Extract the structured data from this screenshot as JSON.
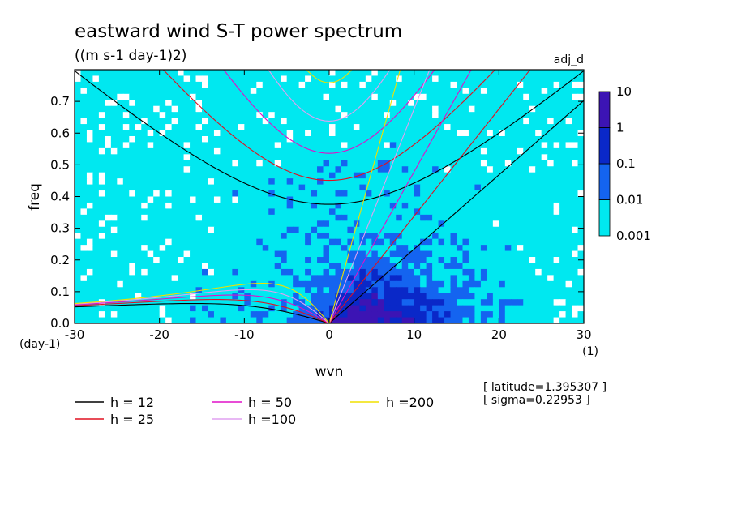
{
  "chart_data": {
    "type": "heatmap",
    "title": "eastward wind S-T power spectrum",
    "subtitle": "((m s-1 day-1)2)",
    "tag": "adj_d",
    "xlabel": "wvn",
    "xunit": "(1)",
    "ylabel": "freq",
    "yunit": "(day-1)",
    "xlim": [
      -30,
      30
    ],
    "ylim": [
      0,
      0.8
    ],
    "x_ticks": [
      -30,
      -20,
      -10,
      0,
      10,
      20,
      30
    ],
    "x_tick_labels": [
      "-30",
      "-20",
      "-10",
      "0",
      "10",
      "20",
      "30"
    ],
    "y_ticks": [
      0,
      0.1,
      0.2,
      0.3,
      0.4,
      0.5,
      0.6,
      0.7
    ],
    "y_tick_labels": [
      "0.0",
      "0.1",
      "0.2",
      "0.3",
      "0.4",
      "0.5",
      "0.6",
      "0.7"
    ],
    "grid": false,
    "colorbar": {
      "levels": [
        0.001,
        0.01,
        0.1,
        1,
        10
      ],
      "labels": [
        "0.001",
        "0.01",
        "0.1",
        "1",
        "10"
      ],
      "colors": [
        "#00e8f0",
        "#1464f0",
        "#0a28c8",
        "#3c14b4"
      ],
      "below_color": "#ffffff"
    },
    "contour_colors": {
      "cyan": "#00e8f0",
      "light_blue": "#1464f0",
      "dark_blue": "#0a28c8",
      "purple": "#3c14b4"
    },
    "series": [
      {
        "name": "h = 12",
        "h": 12,
        "color": "#000000"
      },
      {
        "name": "h = 25",
        "h": 25,
        "color": "#e01020"
      },
      {
        "name": "h = 50",
        "h": 50,
        "color": "#e010c8"
      },
      {
        "name": "h =100",
        "h": 100,
        "color": "#e0a0f0"
      },
      {
        "name": "h =200",
        "h": 200,
        "color": "#f0e000"
      }
    ],
    "annotations": [
      "[ latitude=1.395307 ]",
      "[ sigma=0.22953 ]"
    ]
  }
}
